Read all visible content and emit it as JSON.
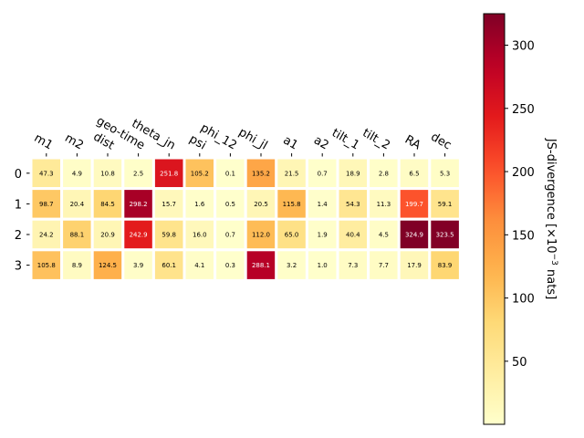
{
  "chart_data": {
    "type": "heatmap",
    "colormap": "YlOrRd",
    "columns": [
      "m1",
      "m2",
      "dist",
      "geo-time",
      "theta_jn",
      "psi",
      "phi_12",
      "phi_jl",
      "a1",
      "a2",
      "tilt_1",
      "tilt_2",
      "RA",
      "dec"
    ],
    "rows": [
      "0",
      "1",
      "2",
      "3"
    ],
    "values": [
      [
        47.3,
        4.9,
        10.8,
        2.5,
        251.8,
        105.2,
        0.1,
        135.2,
        21.5,
        0.7,
        18.9,
        2.8,
        6.5,
        5.3
      ],
      [
        98.7,
        20.4,
        84.5,
        298.2,
        15.7,
        1.6,
        0.5,
        20.5,
        115.8,
        1.4,
        54.3,
        11.3,
        199.7,
        59.1
      ],
      [
        24.2,
        88.1,
        20.9,
        242.9,
        59.8,
        16.0,
        0.7,
        112.0,
        65.0,
        1.9,
        40.4,
        4.5,
        324.9,
        323.5
      ],
      [
        105.8,
        8.9,
        124.5,
        3.9,
        60.1,
        4.1,
        0.3,
        288.1,
        3.2,
        1.0,
        7.3,
        7.7,
        17.9,
        83.9
      ]
    ],
    "value_labels": [
      [
        "47.3",
        "4.9",
        "10.8",
        "2.5",
        "251.8",
        "105.2",
        "0.1",
        "135.2",
        "21.5",
        "0.7",
        "18.9",
        "2.8",
        "6.5",
        "5.3"
      ],
      [
        "98.7",
        "20.4",
        "84.5",
        "298.2",
        "15.7",
        "1.6",
        "0.5",
        "20.5",
        "115.8",
        "1.4",
        "54.3",
        "11.3",
        "199.7",
        "59.1"
      ],
      [
        "24.2",
        "88.1",
        "20.9",
        "242.9",
        "59.8",
        "16.0",
        "0.7",
        "112.0",
        "65.0",
        "1.9",
        "40.4",
        "4.5",
        "324.9",
        "323.5"
      ],
      [
        "105.8",
        "8.9",
        "124.5",
        "3.9",
        "60.1",
        "4.1",
        "0.3",
        "288.1",
        "3.2",
        "1.0",
        "7.3",
        "7.7",
        "17.9",
        "83.9"
      ]
    ],
    "colorbar": {
      "label_main": "JS-divergence [×10",
      "label_exp": "−3",
      "label_tail": " nats]",
      "min": 0.1,
      "max": 324.9,
      "ticks": [
        50,
        100,
        150,
        200,
        250,
        300
      ],
      "tick_labels": [
        "50",
        "100",
        "150",
        "200",
        "250",
        "300"
      ]
    },
    "grid": false,
    "legend": "colorbar-right"
  }
}
